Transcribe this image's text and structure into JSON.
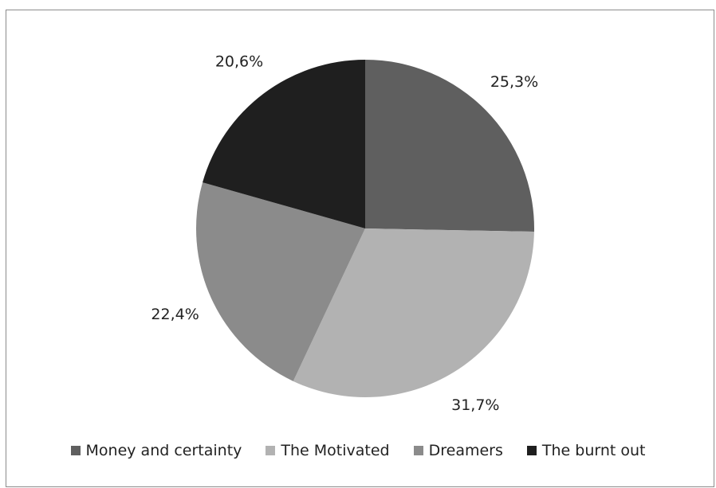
{
  "chart_data": {
    "type": "pie",
    "start_angle_deg": 0,
    "direction": "clockwise",
    "labels_visible": true,
    "legend_position": "bottom",
    "series": [
      {
        "categories": [
          "Money and certainty",
          "The Motivated",
          "Dreamers",
          "The burnt out"
        ],
        "values": [
          25.3,
          31.7,
          22.4,
          20.6
        ],
        "labels": [
          "25,3%",
          "31,7%",
          "22,4%",
          "20,6%"
        ],
        "colors": [
          "#5f5f5f",
          "#b2b2b2",
          "#8b8b8b",
          "#1f1f1f"
        ]
      }
    ]
  }
}
